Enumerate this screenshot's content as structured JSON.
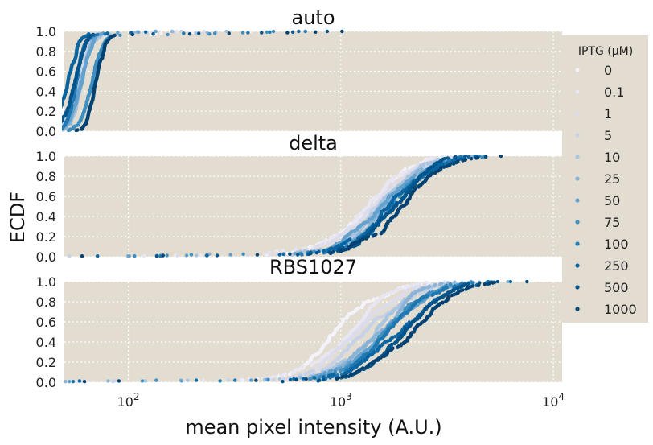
{
  "chart_data": {
    "type": "scatter",
    "ylabel": "ECDF",
    "xlabel": "mean pixel intensity (A.U.)",
    "xscale": "log",
    "xlim": [
      50,
      11000
    ],
    "ylim": [
      0.0,
      1.0
    ],
    "grid": true,
    "x_ticks": [
      {
        "value": 100,
        "base": "10",
        "exp": "2"
      },
      {
        "value": 1000,
        "base": "10",
        "exp": "3"
      },
      {
        "value": 10000,
        "base": "10",
        "exp": "4"
      }
    ],
    "y_ticks": [
      "0.0",
      "0.2",
      "0.4",
      "0.6",
      "0.8",
      "1.0"
    ],
    "legend": {
      "title": "IPTG (μM)",
      "placement": "right",
      "entries": [
        {
          "label": "0",
          "color": "#f4f2fa"
        },
        {
          "label": "0.1",
          "color": "#e8e6f2"
        },
        {
          "label": "1",
          "color": "#dcdcec"
        },
        {
          "label": "5",
          "color": "#c6d2e6"
        },
        {
          "label": "10",
          "color": "#a9c4df"
        },
        {
          "label": "25",
          "color": "#8ab3d6"
        },
        {
          "label": "50",
          "color": "#64a1cc"
        },
        {
          "label": "75",
          "color": "#3f8ec0"
        },
        {
          "label": "100",
          "color": "#1f78b2"
        },
        {
          "label": "250",
          "color": "#0b65a1"
        },
        {
          "label": "500",
          "color": "#03558c"
        },
        {
          "label": "1000",
          "color": "#034373"
        }
      ]
    },
    "panels": [
      {
        "title": "auto",
        "series": [
          {
            "median": 60,
            "spread": 0.04,
            "max": 400
          },
          {
            "median": 59,
            "spread": 0.04,
            "max": 180
          },
          {
            "median": 60,
            "spread": 0.04,
            "max": 250
          },
          {
            "median": 58,
            "spread": 0.04,
            "max": 200
          },
          {
            "median": 60,
            "spread": 0.04,
            "max": 300
          },
          {
            "median": 59,
            "spread": 0.04,
            "max": 220
          },
          {
            "median": 61,
            "spread": 0.04,
            "max": 150
          },
          {
            "median": 66,
            "spread": 0.045,
            "max": 500
          },
          {
            "median": 57,
            "spread": 0.04,
            "max": 700
          },
          {
            "median": 52,
            "spread": 0.04,
            "max": 900
          },
          {
            "median": 55,
            "spread": 0.04,
            "max": 1600
          },
          {
            "median": 70,
            "spread": 0.04,
            "max": 2000
          }
        ]
      },
      {
        "title": "delta",
        "series": [
          {
            "median": 1350,
            "spread": 0.16,
            "max": 4200
          },
          {
            "median": 1400,
            "spread": 0.16,
            "max": 4500
          },
          {
            "median": 1450,
            "spread": 0.16,
            "max": 4600
          },
          {
            "median": 1500,
            "spread": 0.16,
            "max": 4800
          },
          {
            "median": 1550,
            "spread": 0.16,
            "max": 5000
          },
          {
            "median": 1600,
            "spread": 0.16,
            "max": 5200
          },
          {
            "median": 1620,
            "spread": 0.16,
            "max": 5400
          },
          {
            "median": 1650,
            "spread": 0.16,
            "max": 5600
          },
          {
            "median": 1700,
            "spread": 0.16,
            "max": 5800
          },
          {
            "median": 1750,
            "spread": 0.16,
            "max": 6000
          },
          {
            "median": 1850,
            "spread": 0.16,
            "max": 6400
          },
          {
            "median": 2000,
            "spread": 0.16,
            "max": 7000
          }
        ]
      },
      {
        "title": "RBS1027",
        "series": [
          {
            "median": 1000,
            "spread": 0.17,
            "max": 4000
          },
          {
            "median": 1100,
            "spread": 0.17,
            "max": 4300
          },
          {
            "median": 1200,
            "spread": 0.17,
            "max": 4500
          },
          {
            "median": 1300,
            "spread": 0.17,
            "max": 4800
          },
          {
            "median": 1400,
            "spread": 0.17,
            "max": 5000
          },
          {
            "median": 1500,
            "spread": 0.17,
            "max": 5200
          },
          {
            "median": 1600,
            "spread": 0.17,
            "max": 5500
          },
          {
            "median": 1700,
            "spread": 0.17,
            "max": 5800
          },
          {
            "median": 1800,
            "spread": 0.17,
            "max": 6000
          },
          {
            "median": 1900,
            "spread": 0.17,
            "max": 6500
          },
          {
            "median": 2000,
            "spread": 0.17,
            "max": 7500
          },
          {
            "median": 2100,
            "spread": 0.17,
            "max": 9000
          }
        ]
      }
    ]
  }
}
